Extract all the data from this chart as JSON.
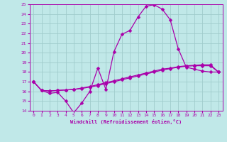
{
  "xlabel": "Windchill (Refroidissement éolien,°C)",
  "xlim": [
    -0.5,
    23.5
  ],
  "ylim": [
    14,
    25
  ],
  "xticks": [
    0,
    1,
    2,
    3,
    4,
    5,
    6,
    7,
    8,
    9,
    10,
    11,
    12,
    13,
    14,
    15,
    16,
    17,
    18,
    19,
    20,
    21,
    22,
    23
  ],
  "yticks": [
    14,
    15,
    16,
    17,
    18,
    19,
    20,
    21,
    22,
    23,
    24,
    25
  ],
  "bg_color": "#c0e8e8",
  "grid_color": "#a0cccc",
  "line_color": "#aa00aa",
  "line1_x": [
    0,
    1,
    2,
    3,
    4,
    5,
    6,
    7,
    8,
    9,
    10,
    11,
    12,
    13,
    14,
    15,
    16,
    17,
    18,
    19,
    20,
    21,
    22,
    23
  ],
  "line1_y": [
    17.0,
    16.1,
    15.8,
    15.9,
    15.0,
    13.8,
    14.8,
    16.0,
    18.4,
    16.2,
    20.1,
    21.9,
    22.3,
    23.7,
    24.8,
    24.95,
    24.5,
    23.4,
    20.4,
    18.5,
    18.3,
    18.1,
    18.0,
    18.0
  ],
  "line2_x": [
    0,
    1,
    2,
    3,
    4,
    5,
    6,
    7,
    8,
    9,
    10,
    11,
    12,
    13,
    14,
    15,
    16,
    17,
    18,
    19,
    20,
    21,
    22,
    23
  ],
  "line2_y": [
    17.0,
    16.1,
    16.05,
    16.1,
    16.15,
    16.2,
    16.35,
    16.5,
    16.7,
    16.9,
    17.1,
    17.3,
    17.5,
    17.7,
    17.9,
    18.1,
    18.3,
    18.4,
    18.55,
    18.65,
    18.7,
    18.75,
    18.75,
    18.0
  ],
  "line3_x": [
    0,
    1,
    2,
    3,
    4,
    5,
    6,
    7,
    8,
    9,
    10,
    11,
    12,
    13,
    14,
    15,
    16,
    17,
    18,
    19,
    20,
    21,
    22,
    23
  ],
  "line3_y": [
    17.0,
    16.1,
    16.05,
    16.1,
    16.15,
    16.2,
    16.3,
    16.45,
    16.6,
    16.8,
    17.0,
    17.2,
    17.4,
    17.6,
    17.8,
    18.0,
    18.2,
    18.35,
    18.5,
    18.6,
    18.65,
    18.65,
    18.65,
    18.0
  ],
  "markersize": 2.5,
  "linewidth": 0.9
}
